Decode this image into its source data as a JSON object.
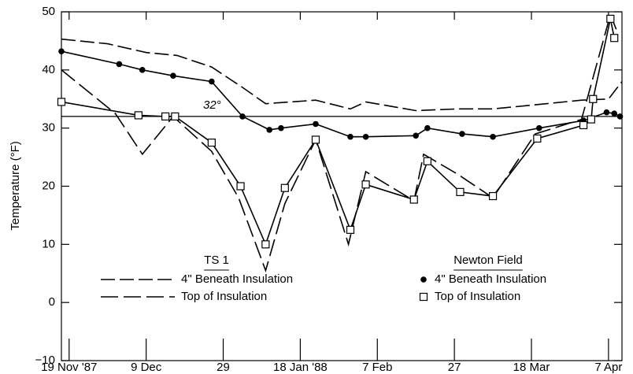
{
  "chart_data": {
    "type": "line",
    "ylabel": "Temperature (°F)",
    "xlim": [
      -2,
      143.5
    ],
    "xticks": [
      {
        "value": 0,
        "label": "19 Nov '87"
      },
      {
        "value": 20,
        "label": "9 Dec"
      },
      {
        "value": 40,
        "label": "29"
      },
      {
        "value": 60,
        "label": "18 Jan '88"
      },
      {
        "value": 80,
        "label": "7 Feb"
      },
      {
        "value": 100,
        "label": "27"
      },
      {
        "value": 120,
        "label": "18 Mar"
      },
      {
        "value": 140,
        "label": "7 Apr"
      }
    ],
    "ylim": [
      -10,
      50
    ],
    "yticks": [
      {
        "value": -10,
        "label": "−10"
      },
      0,
      10,
      20,
      30,
      40,
      50
    ],
    "grid": false,
    "reference_line": {
      "value": 32,
      "label": "32°"
    },
    "legend_titles": [
      "TS 1",
      "Newton Field"
    ],
    "series": [
      {
        "name": "4\" Beneath Insulation",
        "color": "#000000",
        "dash": "18 6",
        "marker": "none",
        "x": [
          -2,
          10,
          20,
          28,
          37,
          45,
          51,
          64,
          73,
          77,
          90,
          101,
          110,
          121,
          133,
          140,
          143.5
        ],
        "values": [
          45.3,
          44.5,
          43,
          42.5,
          40.5,
          37,
          34.2,
          34.8,
          33.3,
          34.5,
          33,
          33.3,
          33.3,
          34,
          34.8,
          35,
          38
        ]
      },
      {
        "name": "Top of Insulation",
        "color": "#000000",
        "dash": "22 7",
        "marker": "none",
        "x": [
          -2,
          12,
          19,
          27,
          37,
          44,
          51,
          56,
          64,
          72.5,
          77,
          89.5,
          92,
          101,
          110,
          121,
          133,
          140.5,
          142
        ],
        "values": [
          40,
          32.5,
          25.5,
          32,
          26,
          18,
          5.5,
          17,
          28,
          10,
          22.5,
          17.5,
          25.5,
          22,
          18,
          29,
          31.5,
          49.5,
          47
        ]
      },
      {
        "name": "4\" Beneath Insulation",
        "color": "#000000",
        "dash": "none",
        "marker": "dot",
        "x": [
          -2,
          13,
          19,
          27,
          37,
          45,
          52,
          55,
          64,
          73,
          77,
          90,
          93,
          102,
          110,
          122,
          133.5,
          139.5,
          141.5,
          143
        ],
        "values": [
          43.2,
          41,
          40,
          39,
          38,
          32,
          29.7,
          30,
          30.7,
          28.5,
          28.5,
          28.7,
          30,
          29,
          28.5,
          30,
          31.3,
          32.7,
          32.5,
          32
        ]
      },
      {
        "name": "Top of Insulation",
        "color": "#000000",
        "dash": "none",
        "marker": "square",
        "x": [
          -2,
          18,
          25,
          27.5,
          37,
          44.5,
          51,
          56,
          64,
          73,
          77,
          89.5,
          93,
          101.5,
          110,
          121.5,
          133.5,
          135.5,
          136,
          140.5,
          141.5
        ],
        "values": [
          34.5,
          32.2,
          32,
          32,
          27.5,
          20,
          10,
          19.7,
          28,
          12.5,
          20.3,
          17.7,
          24.3,
          19,
          18.3,
          28.2,
          30.5,
          31.5,
          35,
          48.8,
          45.5
        ]
      }
    ]
  }
}
